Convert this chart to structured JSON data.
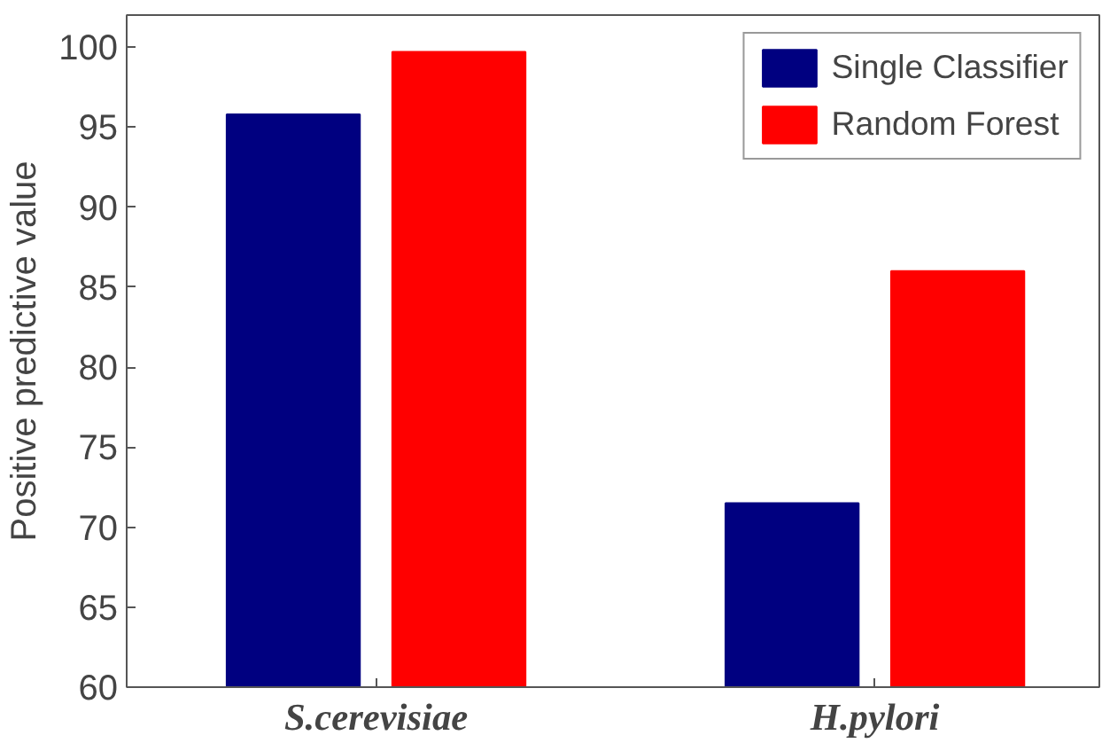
{
  "chart_data": {
    "type": "bar",
    "ylabel": "Positive predictive value",
    "categories": [
      "S.cerevisiae",
      "H.pylori"
    ],
    "series": [
      {
        "name": "Single Classifier",
        "color": "#000080",
        "values": [
          95.8,
          71.5
        ]
      },
      {
        "name": "Random Forest",
        "color": "#ff0000",
        "values": [
          99.7,
          86.0
        ]
      }
    ],
    "ylim": [
      60,
      102
    ],
    "yticks": [
      60,
      65,
      70,
      75,
      80,
      85,
      90,
      95,
      100
    ],
    "grid": false,
    "legend": "top right"
  }
}
